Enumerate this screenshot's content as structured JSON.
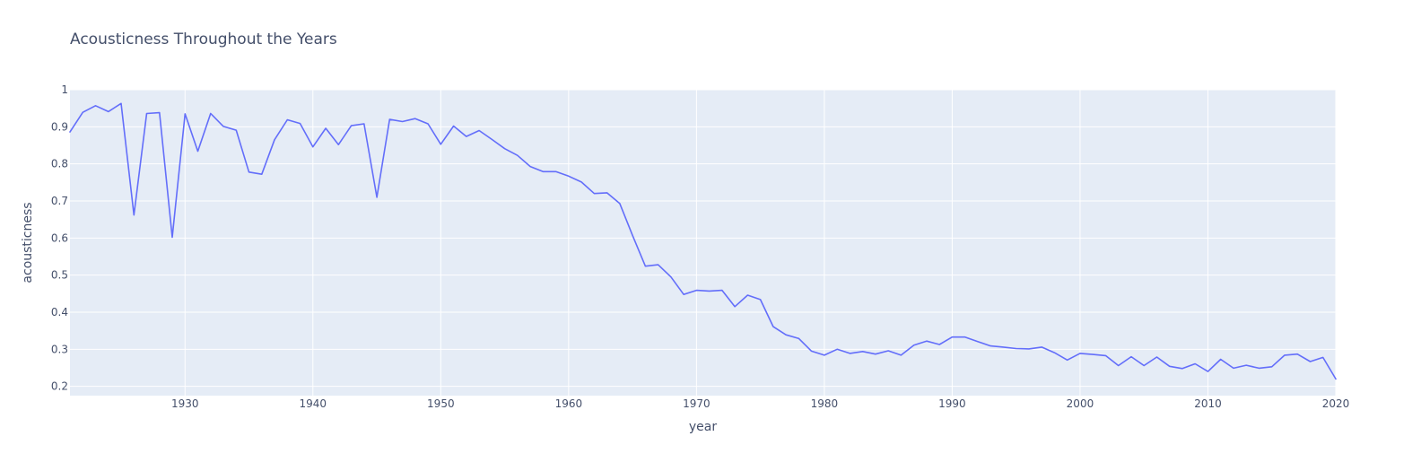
{
  "chart_data": {
    "type": "line",
    "title": "Acousticness Throughout the Years",
    "xlabel": "year",
    "ylabel": "acousticness",
    "xlim": [
      1921,
      2020
    ],
    "ylim": [
      0.175,
      1.0
    ],
    "xticks": [
      1930,
      1940,
      1950,
      1960,
      1970,
      1980,
      1990,
      2000,
      2010,
      2020
    ],
    "xtick_labels": [
      "1930",
      "1940",
      "1950",
      "1960",
      "1970",
      "1980",
      "1990",
      "2000",
      "2010",
      "2020"
    ],
    "yticks": [
      0.2,
      0.3,
      0.4,
      0.5,
      0.6,
      0.7,
      0.8,
      0.9,
      1.0
    ],
    "ytick_labels": [
      "0.2",
      "0.3",
      "0.4",
      "0.5",
      "0.6",
      "0.7",
      "0.8",
      "0.9",
      "1"
    ],
    "grid": true,
    "line_color": "#636efa",
    "plot_bg_color": "#e5ecf6",
    "series": [
      {
        "x": [
          1921,
          1922,
          1923,
          1924,
          1925,
          1926,
          1927,
          1928,
          1929,
          1930,
          1931,
          1932,
          1933,
          1934,
          1935,
          1936,
          1937,
          1938,
          1939,
          1940,
          1941,
          1942,
          1943,
          1944,
          1945,
          1946,
          1947,
          1948,
          1949,
          1950,
          1951,
          1952,
          1953,
          1954,
          1955,
          1956,
          1957,
          1958,
          1959,
          1960,
          1961,
          1962,
          1963,
          1964,
          1965,
          1966,
          1967,
          1968,
          1969,
          1970,
          1971,
          1972,
          1973,
          1974,
          1975,
          1976,
          1977,
          1978,
          1979,
          1980,
          1981,
          1982,
          1983,
          1984,
          1985,
          1986,
          1987,
          1988,
          1989,
          1990,
          1991,
          1992,
          1993,
          1994,
          1995,
          1996,
          1997,
          1998,
          1999,
          2000,
          2001,
          2002,
          2003,
          2004,
          2005,
          2006,
          2007,
          2008,
          2009,
          2010,
          2011,
          2012,
          2013,
          2014,
          2015,
          2016,
          2017,
          2018,
          2019,
          2020
        ],
        "y": [
          0.886,
          0.939,
          0.957,
          0.941,
          0.963,
          0.662,
          0.936,
          0.938,
          0.602,
          0.935,
          0.834,
          0.936,
          0.901,
          0.891,
          0.778,
          0.772,
          0.865,
          0.919,
          0.909,
          0.846,
          0.896,
          0.852,
          0.903,
          0.908,
          0.71,
          0.92,
          0.914,
          0.922,
          0.908,
          0.853,
          0.902,
          0.874,
          0.89,
          0.866,
          0.841,
          0.823,
          0.793,
          0.779,
          0.779,
          0.767,
          0.751,
          0.72,
          0.722,
          0.693,
          0.607,
          0.524,
          0.528,
          0.495,
          0.448,
          0.459,
          0.457,
          0.459,
          0.415,
          0.446,
          0.434,
          0.361,
          0.339,
          0.329,
          0.295,
          0.284,
          0.3,
          0.289,
          0.294,
          0.287,
          0.296,
          0.284,
          0.311,
          0.322,
          0.313,
          0.333,
          0.333,
          0.321,
          0.309,
          0.306,
          0.302,
          0.301,
          0.306,
          0.291,
          0.271,
          0.289,
          0.286,
          0.283,
          0.256,
          0.28,
          0.256,
          0.279,
          0.254,
          0.248,
          0.261,
          0.24,
          0.273,
          0.249,
          0.257,
          0.249,
          0.253,
          0.284,
          0.287,
          0.267,
          0.278,
          0.22
        ]
      }
    ]
  }
}
